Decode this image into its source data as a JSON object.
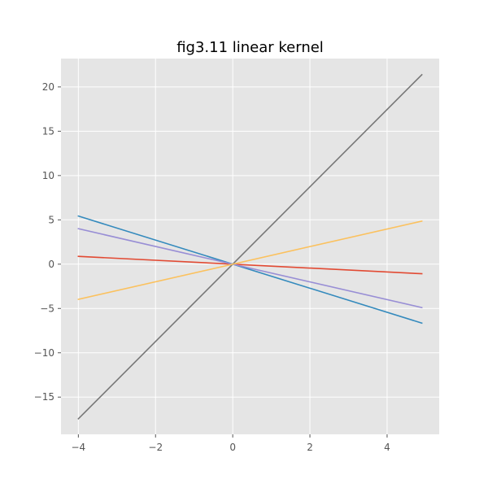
{
  "chart_data": {
    "type": "line",
    "title": "fig3.11 linear kernel",
    "xlabel": "",
    "ylabel": "",
    "xlim": [
      -4.45,
      5.35
    ],
    "ylim": [
      -19.2,
      23.2
    ],
    "grid": true,
    "xticks": [
      -4,
      -2,
      0,
      2,
      4
    ],
    "yticks": [
      -15,
      -10,
      -5,
      0,
      5,
      10,
      15,
      20
    ],
    "xtick_labels": [
      "−4",
      "−2",
      "0",
      "2",
      "4"
    ],
    "ytick_labels": [
      "−15",
      "−10",
      "−5",
      "0",
      "5",
      "10",
      "15",
      "20"
    ],
    "series": [
      {
        "color": "#E24A33",
        "x": [
          -4.0,
          4.9
        ],
        "y": [
          0.88,
          -1.08
        ]
      },
      {
        "color": "#348ABD",
        "x": [
          -4.0,
          4.9
        ],
        "y": [
          5.43,
          -6.65
        ]
      },
      {
        "color": "#988ED5",
        "x": [
          -4.0,
          4.9
        ],
        "y": [
          4.0,
          -4.9
        ]
      },
      {
        "color": "#777777",
        "x": [
          -4.0,
          4.9
        ],
        "y": [
          -17.45,
          21.38
        ]
      },
      {
        "color": "#FBC15E",
        "x": [
          -4.0,
          4.9
        ],
        "y": [
          -3.97,
          4.86
        ]
      }
    ]
  }
}
